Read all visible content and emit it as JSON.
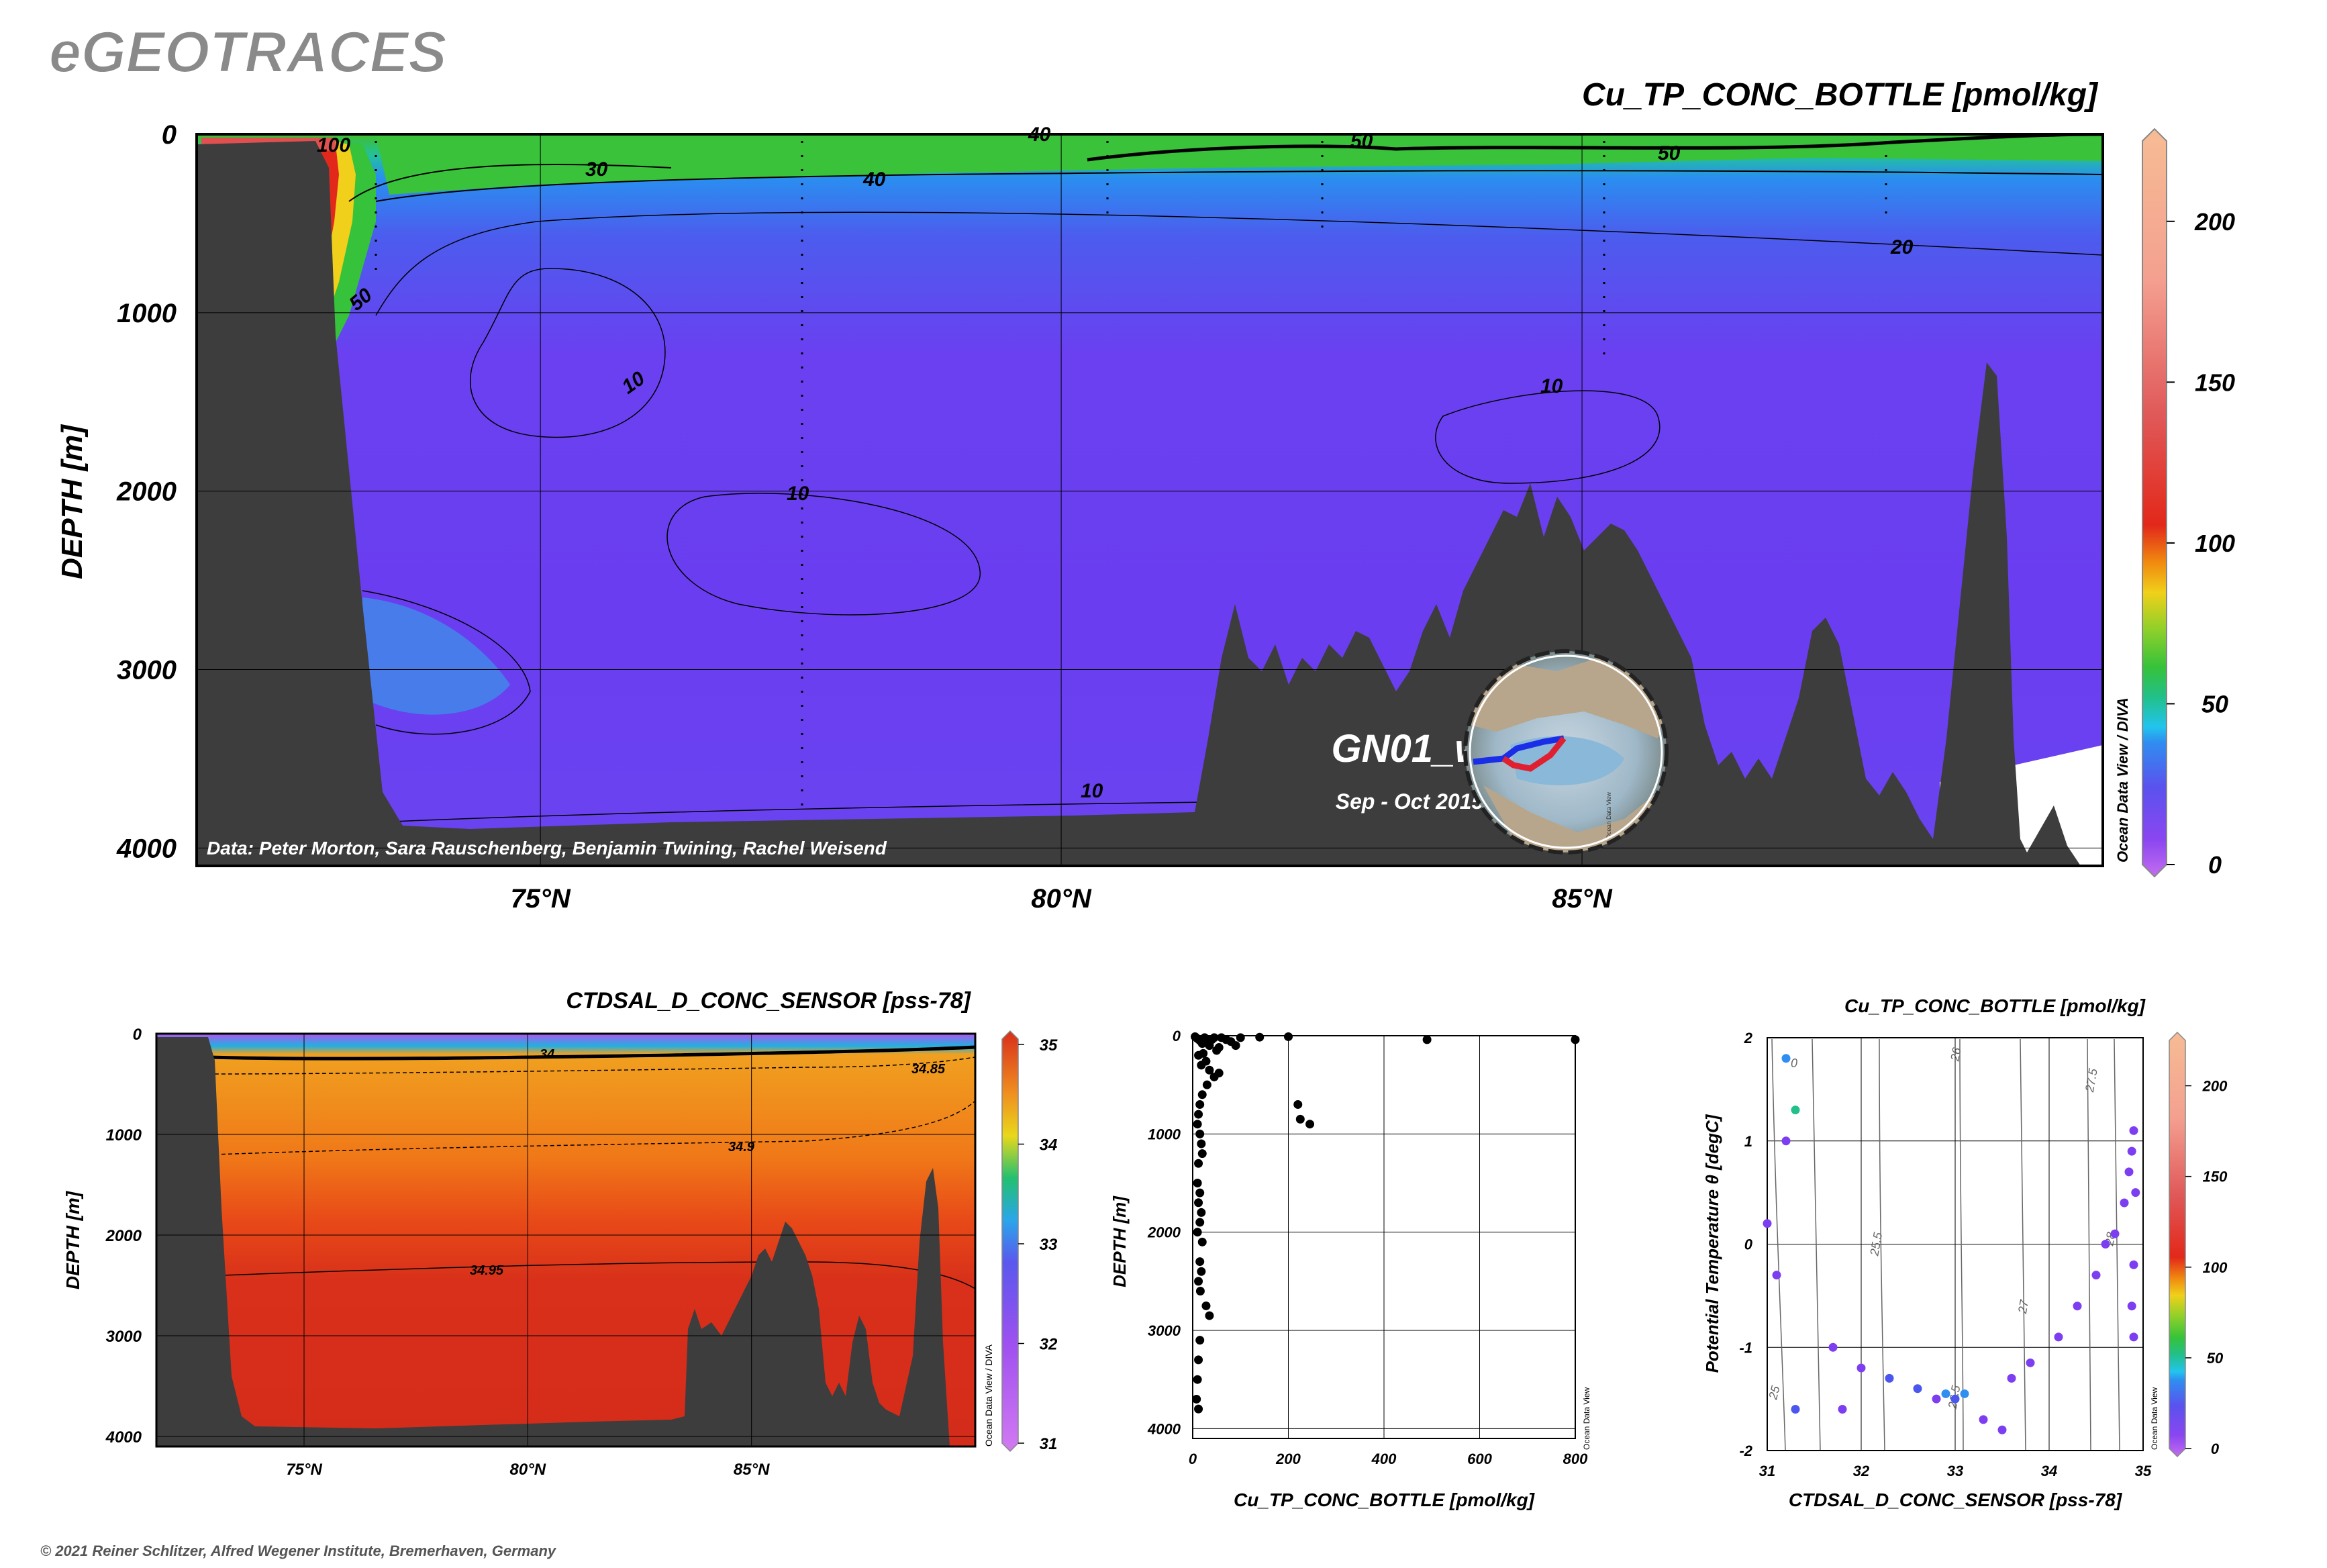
{
  "header": {
    "logo_text": "eGEOTRACES",
    "copyright": "© 2021 Reiner Schlitzer, Alfred Wegener Institute, Bremerhaven, Germany"
  },
  "colors": {
    "seafloor": "#3d3d3d",
    "cu_scale": [
      "#c46cf0",
      "#7c3ef0",
      "#4a56ee",
      "#2f8ef0",
      "#22c4ee",
      "#22c08a",
      "#36c23a",
      "#8ed02a",
      "#f0d01a",
      "#f08a10",
      "#e2281a",
      "#e05a5a",
      "#f4a090",
      "#f6bc94"
    ],
    "sal_scale": [
      "#cd6ef2",
      "#9a4ef0",
      "#4a60ee",
      "#28a6ea",
      "#22c070",
      "#e8d81a",
      "#f0a020",
      "#f07018",
      "#d82e1a"
    ]
  },
  "chart_data": [
    {
      "type": "section",
      "title": "Cu_TP_CONC_BOTTLE [pmol/kg]",
      "ylabel": "DEPTH [m]",
      "x_ticks": [
        "75°N",
        "80°N",
        "85°N"
      ],
      "x_tick_values": [
        75,
        80,
        85
      ],
      "y_ticks": [
        "0",
        "1000",
        "2000",
        "3000",
        "4000"
      ],
      "y_tick_values": [
        0,
        1000,
        2000,
        3000,
        4000
      ],
      "xlim": [
        71.7,
        90.0
      ],
      "ylim": [
        0,
        4100
      ],
      "colorbar": {
        "ticks": [
          "0",
          "50",
          "100",
          "150",
          "200"
        ],
        "range": [
          0,
          225
        ]
      },
      "contour_labels": [
        "100",
        "50",
        "30",
        "40",
        "20",
        "10",
        "10",
        "10",
        "10",
        "50",
        "40",
        "50"
      ],
      "cruise": {
        "name": "GN01_w",
        "dates": "Sep - Oct 2015"
      },
      "credit": "Data: Peter Morton, Sara Rauschenberg, Benjamin Twining, Rachel Weisend",
      "side_label": "Ocean Data View / DIVA",
      "map_label": "Ocean Data View"
    },
    {
      "type": "section",
      "title": "CTDSAL_D_CONC_SENSOR [pss-78]",
      "ylabel": "DEPTH [m]",
      "x_ticks": [
        "75°N",
        "80°N",
        "85°N"
      ],
      "x_tick_values": [
        75,
        80,
        85
      ],
      "y_ticks": [
        "0",
        "1000",
        "2000",
        "3000",
        "4000"
      ],
      "y_tick_values": [
        0,
        1000,
        2000,
        3000,
        4000
      ],
      "xlim": [
        71.7,
        90.0
      ],
      "ylim": [
        0,
        4100
      ],
      "colorbar": {
        "ticks": [
          "35",
          "34",
          "33",
          "32",
          "31"
        ],
        "range": [
          31,
          35
        ]
      },
      "contour_labels": [
        "34",
        "34.85",
        "34.9",
        "34.95"
      ],
      "side_label": "Ocean Data View / DIVA"
    },
    {
      "type": "scatter",
      "title": "",
      "xlabel": "Cu_TP_CONC_BOTTLE [pmol/kg]",
      "ylabel": "DEPTH [m]",
      "x_ticks": [
        "0",
        "200",
        "400",
        "600",
        "800"
      ],
      "y_ticks": [
        "0",
        "1000",
        "2000",
        "3000",
        "4000"
      ],
      "xlim": [
        0,
        800
      ],
      "ylim": [
        0,
        4100
      ],
      "side_label": "Ocean Data View",
      "points": [
        [
          5,
          10
        ],
        [
          10,
          30
        ],
        [
          15,
          50
        ],
        [
          20,
          80
        ],
        [
          25,
          20
        ],
        [
          30,
          60
        ],
        [
          35,
          100
        ],
        [
          40,
          40
        ],
        [
          45,
          20
        ],
        [
          50,
          150
        ],
        [
          55,
          120
        ],
        [
          60,
          20
        ],
        [
          70,
          40
        ],
        [
          80,
          60
        ],
        [
          90,
          100
        ],
        [
          100,
          20
        ],
        [
          140,
          15
        ],
        [
          200,
          10
        ],
        [
          490,
          40
        ],
        [
          800,
          40
        ],
        [
          12,
          200
        ],
        [
          18,
          300
        ],
        [
          22,
          180
        ],
        [
          28,
          260
        ],
        [
          35,
          350
        ],
        [
          45,
          420
        ],
        [
          55,
          380
        ],
        [
          30,
          500
        ],
        [
          20,
          600
        ],
        [
          15,
          700
        ],
        [
          12,
          800
        ],
        [
          10,
          900
        ],
        [
          15,
          1000
        ],
        [
          18,
          1100
        ],
        [
          20,
          1200
        ],
        [
          12,
          1300
        ],
        [
          10,
          1500
        ],
        [
          15,
          1600
        ],
        [
          12,
          1700
        ],
        [
          18,
          1800
        ],
        [
          15,
          1900
        ],
        [
          10,
          2000
        ],
        [
          20,
          2100
        ],
        [
          15,
          2300
        ],
        [
          18,
          2400
        ],
        [
          12,
          2500
        ],
        [
          16,
          2600
        ],
        [
          28,
          2750
        ],
        [
          35,
          2850
        ],
        [
          15,
          3100
        ],
        [
          12,
          3300
        ],
        [
          10,
          3500
        ],
        [
          8,
          3700
        ],
        [
          12,
          3800
        ],
        [
          220,
          700
        ],
        [
          225,
          850
        ],
        [
          245,
          900
        ]
      ]
    },
    {
      "type": "scatter",
      "title": "Cu_TP_CONC_BOTTLE [pmol/kg]",
      "xlabel": "CTDSAL_D_CONC_SENSOR [pss-78]",
      "ylabel": "Potential Temperature θ [degC]",
      "x_ticks": [
        "31",
        "32",
        "33",
        "34",
        "35"
      ],
      "y_ticks": [
        "2",
        "1",
        "0",
        "-1",
        "-2"
      ],
      "xlim": [
        31,
        35
      ],
      "ylim": [
        -2,
        2
      ],
      "colorbar": {
        "ticks": [
          "0",
          "50",
          "100",
          "150",
          "200"
        ],
        "range": [
          0,
          225
        ]
      },
      "isopycnal_labels": [
        "0",
        "25",
        "25.5",
        "26",
        "27",
        "27.5",
        "28",
        "26.5"
      ],
      "side_label": "Ocean Data View",
      "points": [
        [
          31.2,
          1.8,
          60
        ],
        [
          31.3,
          1.3,
          90
        ],
        [
          31.2,
          1.0,
          15
        ],
        [
          31.0,
          0.2,
          20
        ],
        [
          31.1,
          -0.3,
          20
        ],
        [
          31.3,
          -1.6,
          30
        ],
        [
          31.8,
          -1.6,
          20
        ],
        [
          31.7,
          -1.0,
          20
        ],
        [
          32.0,
          -1.2,
          25
        ],
        [
          32.3,
          -1.3,
          30
        ],
        [
          32.6,
          -1.4,
          30
        ],
        [
          32.8,
          -1.5,
          25
        ],
        [
          33.0,
          -1.5,
          40
        ],
        [
          33.1,
          -1.45,
          60
        ],
        [
          32.9,
          -1.45,
          50
        ],
        [
          33.3,
          -1.7,
          20
        ],
        [
          33.5,
          -1.8,
          20
        ],
        [
          33.6,
          -1.3,
          25
        ],
        [
          33.8,
          -1.15,
          20
        ],
        [
          34.1,
          -0.9,
          15
        ],
        [
          34.3,
          -0.6,
          15
        ],
        [
          34.5,
          -0.3,
          15
        ],
        [
          34.6,
          0.0,
          15
        ],
        [
          34.7,
          0.1,
          15
        ],
        [
          34.8,
          0.4,
          15
        ],
        [
          34.85,
          0.7,
          15
        ],
        [
          34.88,
          0.9,
          15
        ],
        [
          34.9,
          1.1,
          15
        ],
        [
          34.92,
          0.5,
          15
        ],
        [
          34.9,
          -0.2,
          15
        ],
        [
          34.88,
          -0.6,
          15
        ],
        [
          34.9,
          -0.9,
          15
        ]
      ]
    }
  ]
}
